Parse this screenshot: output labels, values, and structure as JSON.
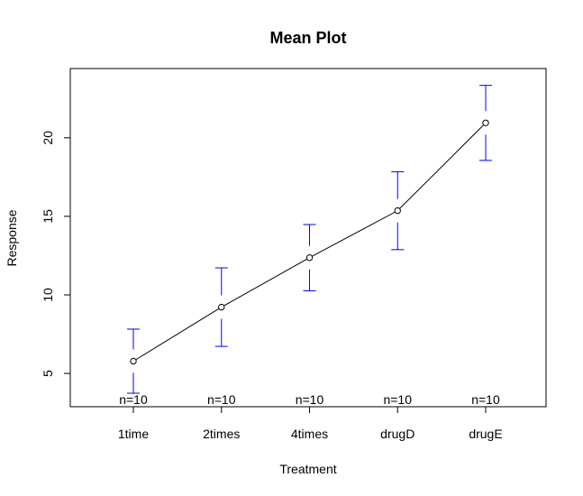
{
  "chart_data": {
    "type": "line",
    "title": "Mean Plot",
    "xlabel": "Treatment",
    "ylabel": "Response",
    "categories": [
      "1time",
      "2times",
      "4times",
      "drugD",
      "drugE"
    ],
    "series": [
      {
        "values": [
          5.78,
          9.22,
          12.37,
          15.36,
          20.95
        ],
        "error_lower": [
          3.74,
          6.72,
          10.26,
          12.88,
          18.56
        ],
        "error_upper": [
          7.82,
          11.72,
          14.48,
          17.84,
          23.34
        ]
      }
    ],
    "n_labels": [
      "n=10",
      "n=10",
      "n=10",
      "n=10",
      "n=10"
    ],
    "y_ticks": [
      5,
      10,
      15,
      20
    ],
    "ylim": [
      2.88,
      24.41
    ],
    "grid": false,
    "colors": {
      "line": "#000000",
      "error_bars": "#0000ff",
      "points": "#000000"
    }
  }
}
